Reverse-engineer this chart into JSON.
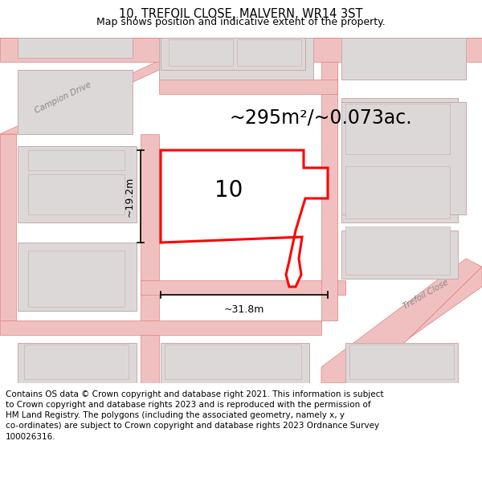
{
  "title": "10, TREFOIL CLOSE, MALVERN, WR14 3ST",
  "subtitle": "Map shows position and indicative extent of the property.",
  "area_text": "~295m²/~0.073ac.",
  "label_number": "10",
  "dim_width": "~31.8m",
  "dim_height": "~19.2m",
  "footer_line1": "Contains OS data © Crown copyright and database right 2021. This information is subject",
  "footer_line2": "to Crown copyright and database rights 2023 and is reproduced with the permission of",
  "footer_line3": "HM Land Registry. The polygons (including the associated geometry, namely x, y",
  "footer_line4": "co-ordinates) are subject to Crown copyright and database rights 2023 Ordnance Survey",
  "footer_line5": "100026316.",
  "map_bg": "#ffffff",
  "road_color": "#f0c0c0",
  "road_edge_color": "#e08080",
  "building_color": "#ddd8d8",
  "building_edge_color": "#c8a8a8",
  "highlight_color": "#ff0000",
  "campion_drive_label": "Campion Drive",
  "trefoil_close_label": "Trefoil Close",
  "title_fontsize": 10.5,
  "subtitle_fontsize": 9,
  "area_fontsize": 18,
  "number_fontsize": 20,
  "dim_fontsize": 9,
  "footer_fontsize": 7.5,
  "road_label_color": "#888888",
  "road_label_size": 7.5
}
